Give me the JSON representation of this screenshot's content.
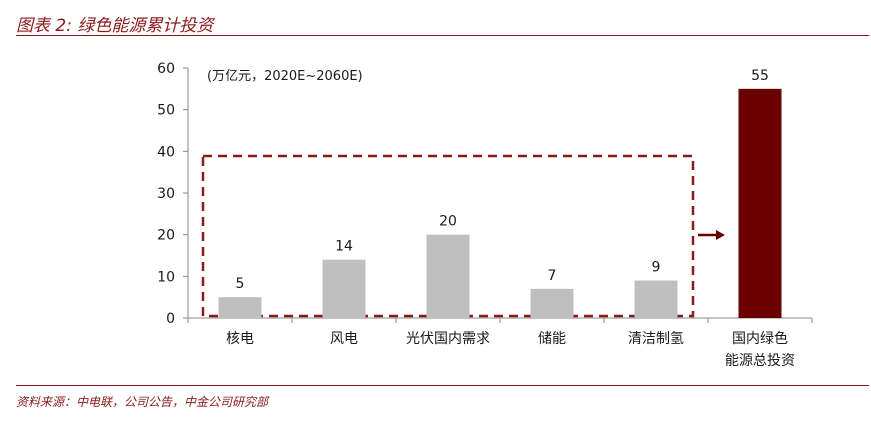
{
  "figure": {
    "title": "图表 2:  绿色能源累计投资",
    "source": "资料来源：中电联，公司公告，中金公司研究部"
  },
  "chart_data": {
    "type": "bar",
    "unit_note": "(万亿元，2020E~2060E)",
    "categories": [
      "核电",
      "风电",
      "光伏国内需求",
      "储能",
      "清洁制氢",
      "国内绿色\n能源总投资"
    ],
    "values": [
      5,
      14,
      20,
      7,
      9,
      55
    ],
    "data_labels": [
      "5",
      "14",
      "20",
      "7",
      "9",
      "55"
    ],
    "ylim": [
      0,
      60
    ],
    "yticks": [
      "0",
      "10",
      "20",
      "30",
      "40",
      "50",
      "60"
    ],
    "grid": false,
    "colors": {
      "component_bar": "#bfbfbf",
      "total_bar": "#6b0000",
      "bracket": "#8b1a1a",
      "axis": "#888888"
    }
  }
}
